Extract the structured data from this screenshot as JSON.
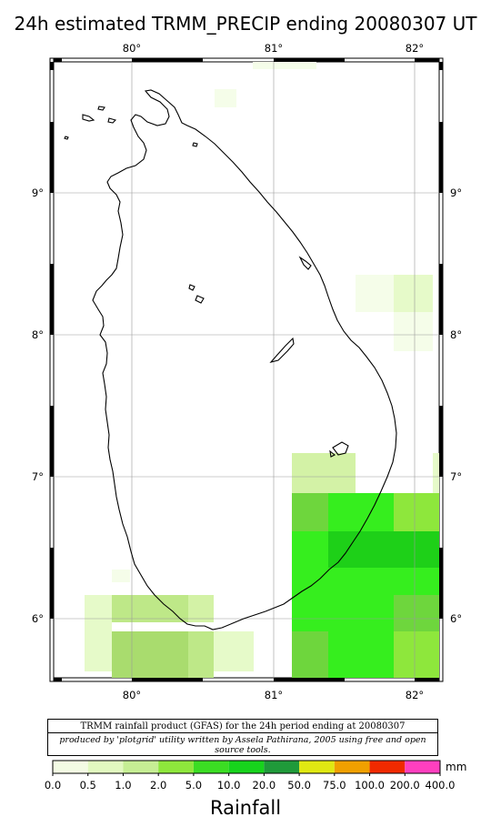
{
  "title": "24h estimated TRMM_PRECIP  ending 20080307 UT",
  "map": {
    "lon_ticks": [
      "80°",
      "81°",
      "82°"
    ],
    "lat_ticks": [
      "9°",
      "8°",
      "7°",
      "6°"
    ],
    "extent": {
      "lon_min": 79.45,
      "lon_max": 82.2,
      "lat_min": 5.55,
      "lat_max": 9.95
    },
    "colors": {
      "c0_5": "#f5fde9",
      "c1": "#e6fac9",
      "c1b": "#d3f2a6",
      "c2": "#bee888",
      "c2b": "#a9dc6e",
      "c5": "#8ee73c",
      "c5b": "#6ed63d",
      "c10": "#36ee1e",
      "c20": "#1ed018",
      "c50": "#2cb52c"
    }
  },
  "caption": {
    "line1": "TRMM rainfall product (GFAS) for the 24h period ending at 20080307",
    "line2": "produced by 'plotgrid' utility written by Assela Pathirana, 2005 using free and open source tools."
  },
  "legend": {
    "title": "Rainfall",
    "unit": "mm",
    "ticks": [
      "0.0",
      "0.5",
      "1.0",
      "2.0",
      "5.0",
      "10.0",
      "20.0",
      "50.0",
      "75.0",
      "100.0",
      "200.0",
      "400.0"
    ],
    "colors": [
      "#ffffff",
      "#f3fce4",
      "#e2f9c0",
      "#c6ee94",
      "#8ee73c",
      "#3bdd23",
      "#17d31c",
      "#1f9a3a",
      "#e0e812",
      "#f0a000",
      "#f02a00",
      "#ff3fbf"
    ]
  }
}
